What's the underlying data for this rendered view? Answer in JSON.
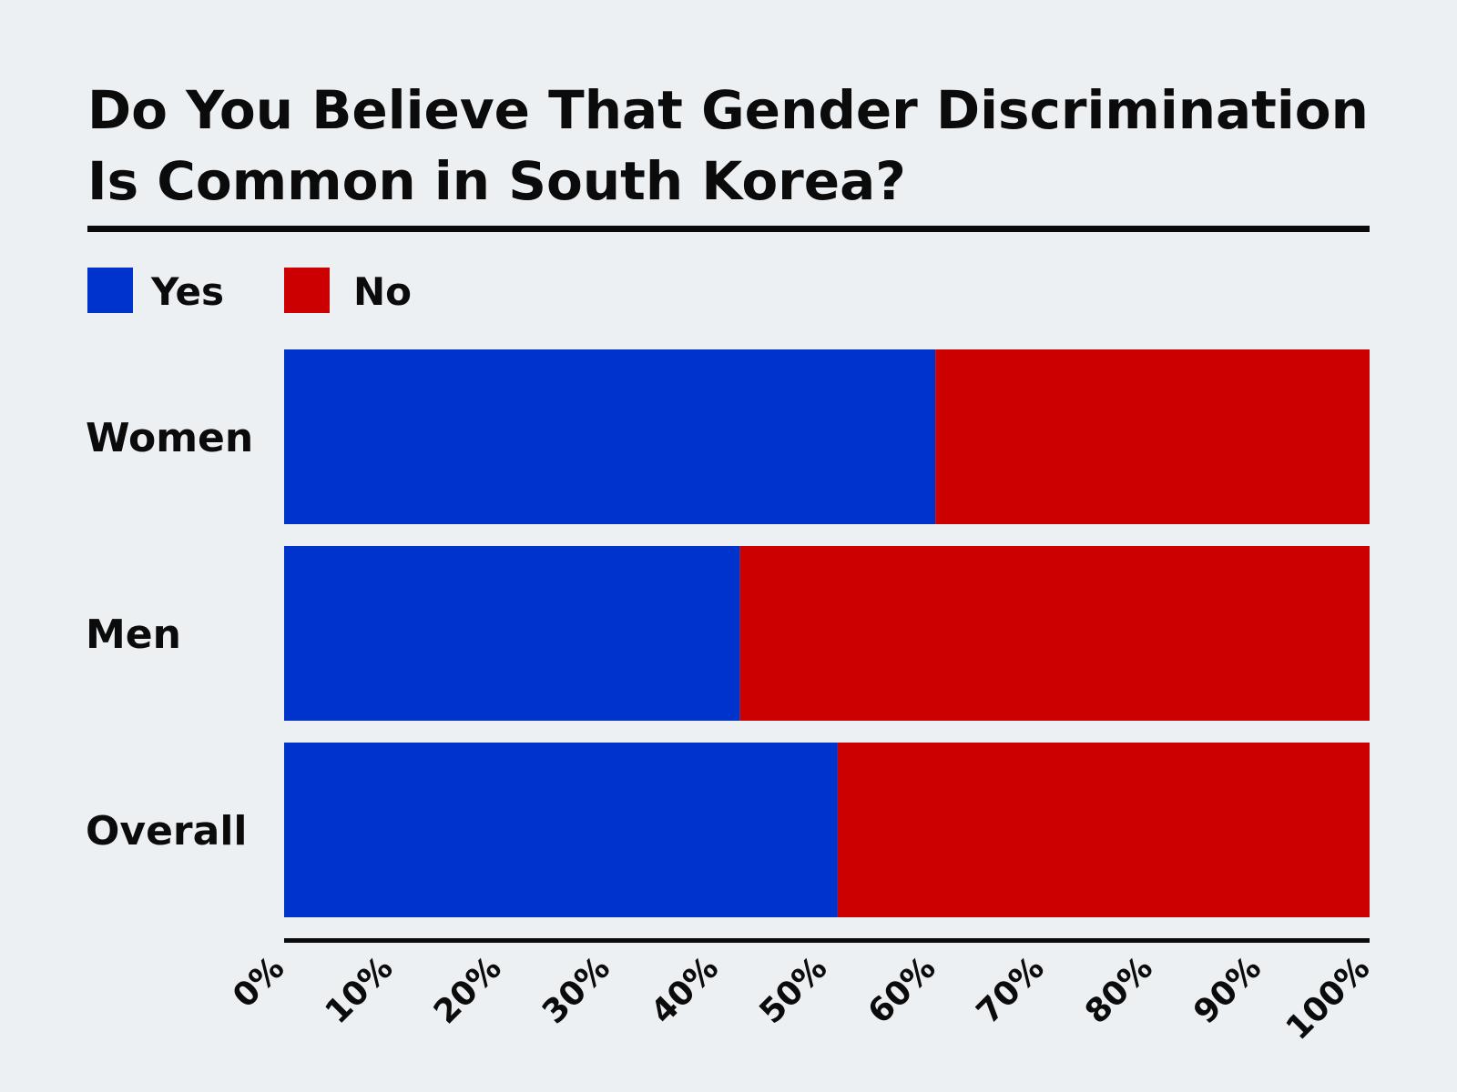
{
  "chart_data": {
    "type": "bar",
    "orientation": "horizontal",
    "stacked": true,
    "title_lines": [
      "Do You Believe That Gender Discrimination",
      "Is Common in South Korea?"
    ],
    "categories": [
      "Women",
      "Men",
      "Overall"
    ],
    "series": [
      {
        "name": "Yes",
        "color": "#0033cc",
        "values": [
          60,
          42,
          51
        ]
      },
      {
        "name": "No",
        "color": "#cc0000",
        "values": [
          40,
          58,
          49
        ]
      }
    ],
    "x_ticks": [
      "0%",
      "10%",
      "20%",
      "30%",
      "40%",
      "50%",
      "60%",
      "70%",
      "80%",
      "90%",
      "100%"
    ],
    "xlim": [
      0,
      100
    ],
    "legend_position": "top-left",
    "grid": false
  }
}
